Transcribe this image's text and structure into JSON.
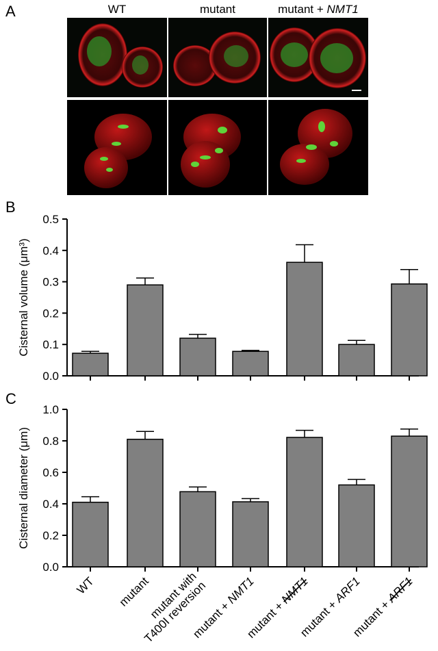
{
  "panel_labels": [
    "A",
    "B",
    "C"
  ],
  "panel_a": {
    "columns": [
      "WT",
      "mutant",
      "mutant + NMT1"
    ]
  },
  "chart_data": [
    {
      "type": "bar",
      "y_label": "Cisternal volume (μm³)",
      "values": [
        0.072,
        0.29,
        0.12,
        0.078,
        0.362,
        0.1,
        0.293
      ],
      "errors": [
        0.006,
        0.022,
        0.012,
        0.003,
        0.056,
        0.013,
        0.046
      ],
      "color": "#808080",
      "ylim": [
        0,
        0.5
      ],
      "yticks": [
        {
          "value": 0,
          "label": "0.0"
        },
        0.1,
        0.2,
        0.3,
        0.4,
        0.5
      ]
    },
    {
      "type": "bar",
      "y_label": "Cisternal diameter (μm)",
      "categories": [
        "WT",
        "mutant",
        "mutant with\nT400I reversion",
        "mutant + NMT1",
        "mutant + NMT1",
        "mutant + ARF1",
        "mutant + ARF1"
      ],
      "values": [
        0.41,
        0.81,
        0.477,
        0.413,
        0.822,
        0.52,
        0.83
      ],
      "errors": [
        0.035,
        0.05,
        0.03,
        0.02,
        0.045,
        0.035,
        0.045
      ],
      "color": "#808080",
      "ylim": [
        0,
        1
      ],
      "yticks": [
        {
          "value": 0,
          "label": "0.0"
        },
        0.2,
        0.4,
        0.6,
        0.8,
        {
          "value": 1,
          "label": "1.0"
        }
      ]
    }
  ]
}
